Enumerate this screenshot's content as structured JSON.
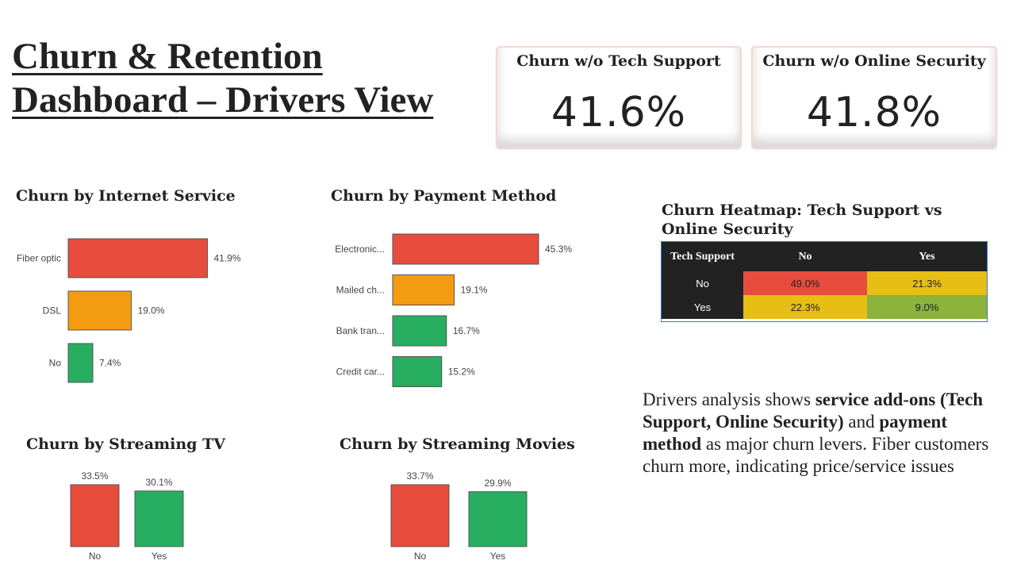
{
  "page": {
    "title_line1": "Churn & Retention",
    "title_line2": "Dashboard – Drivers View"
  },
  "kpis": [
    {
      "title": "Churn w/o Tech Support",
      "value": "41.6%"
    },
    {
      "title": "Churn w/o Online Security",
      "value": "41.8%"
    }
  ],
  "colors": {
    "red": "#e74c3c",
    "orange": "#f39c12",
    "green": "#27ae60",
    "yellow": "#e6be14",
    "olive": "#8cb33a",
    "dark": "#222222"
  },
  "chart_data": [
    {
      "id": "internet_service",
      "type": "bar",
      "orientation": "horizontal",
      "title": "Churn by Internet Service",
      "categories": [
        "Fiber optic",
        "DSL",
        "No"
      ],
      "values": [
        41.9,
        19.0,
        7.4
      ],
      "labels": [
        "41.9%",
        "19.0%",
        "7.4%"
      ],
      "colors": [
        "#e74c3c",
        "#f39c12",
        "#27ae60"
      ]
    },
    {
      "id": "payment_method",
      "type": "bar",
      "orientation": "horizontal",
      "title": "Churn by Payment Method",
      "categories": [
        "Electronic...",
        "Mailed ch...",
        "Bank tran...",
        "Credit car..."
      ],
      "values": [
        45.3,
        19.1,
        16.7,
        15.2
      ],
      "labels": [
        "45.3%",
        "19.1%",
        "16.7%",
        "15.2%"
      ],
      "colors": [
        "#e74c3c",
        "#f39c12",
        "#27ae60",
        "#27ae60"
      ]
    },
    {
      "id": "streaming_tv",
      "type": "bar",
      "orientation": "vertical",
      "title": "Churn by Streaming TV",
      "categories": [
        "No",
        "Yes"
      ],
      "values": [
        33.5,
        30.1
      ],
      "labels": [
        "33.5%",
        "30.1%"
      ],
      "colors": [
        "#e74c3c",
        "#27ae60"
      ]
    },
    {
      "id": "streaming_movies",
      "type": "bar",
      "orientation": "vertical",
      "title": "Churn by Streaming Movies",
      "categories": [
        "No",
        "Yes"
      ],
      "values": [
        33.7,
        29.9
      ],
      "labels": [
        "33.7%",
        "29.9%"
      ],
      "colors": [
        "#e74c3c",
        "#27ae60"
      ]
    },
    {
      "id": "heatmap",
      "type": "heatmap",
      "title": "Churn Heatmap: Tech Support vs Online Security",
      "corner_label": "Tech Support",
      "columns": [
        "No",
        "Yes"
      ],
      "rows": [
        "No",
        "Yes"
      ],
      "values": [
        [
          49.0,
          21.3
        ],
        [
          22.3,
          9.0
        ]
      ],
      "labels": [
        [
          "49.0%",
          "21.3%"
        ],
        [
          "22.3%",
          "9.0%"
        ]
      ],
      "colors": [
        [
          "#e74c3c",
          "#e6be14"
        ],
        [
          "#e6be14",
          "#8cb33a"
        ]
      ]
    }
  ],
  "summary": {
    "part1": "Drivers analysis shows ",
    "bold1": "service add-ons (Tech Support, Online Security)",
    "part2": " and ",
    "bold2": "payment method",
    "part3": " as major churn levers. Fiber customers churn more, indicating price/service issues"
  }
}
